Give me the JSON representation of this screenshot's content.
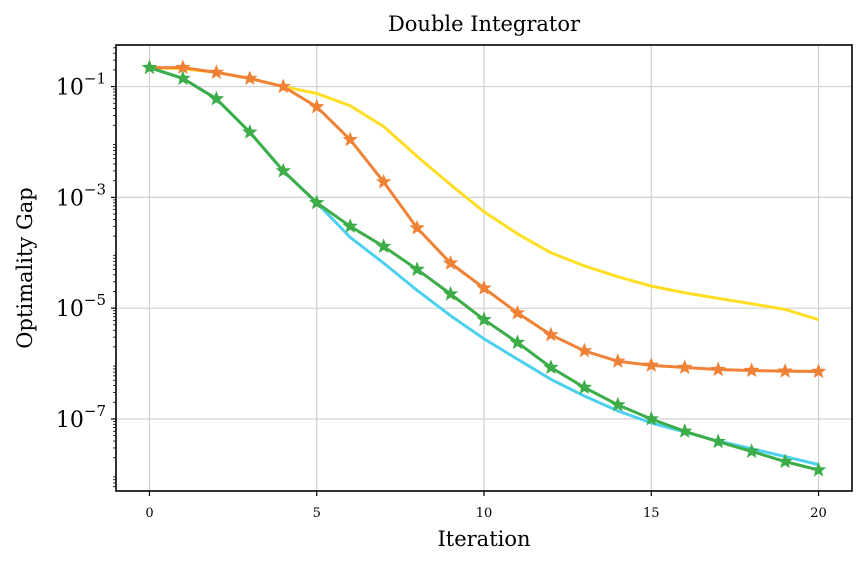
{
  "chart_data": {
    "type": "line",
    "title": "Double Integrator",
    "xlabel": "Iteration",
    "ylabel": "Optimality Gap",
    "xlim": [
      -1,
      21
    ],
    "ylim_log10": [
      -8.3,
      -0.25
    ],
    "yscale": "log",
    "grid": true,
    "x_ticks": [
      0,
      5,
      10,
      15,
      20
    ],
    "y_ticks": [
      {
        "base": "10",
        "exponent": "−1",
        "value_log10": -1
      },
      {
        "base": "10",
        "exponent": "−3",
        "value_log10": -3
      },
      {
        "base": "10",
        "exponent": "−5",
        "value_log10": -5
      },
      {
        "base": "10",
        "exponent": "−7",
        "value_log10": -7
      }
    ],
    "x": [
      0,
      1,
      2,
      3,
      4,
      5,
      6,
      7,
      8,
      9,
      10,
      11,
      12,
      13,
      14,
      15,
      16,
      17,
      18,
      19,
      20
    ],
    "series": [
      {
        "color": "#ffdd22",
        "marker": "none",
        "values": [
          0.22,
          0.21,
          0.18,
          0.14,
          0.1,
          0.075,
          0.045,
          0.019,
          0.0055,
          0.0017,
          0.00055,
          0.00022,
          0.0001,
          5.8e-05,
          3.7e-05,
          2.5e-05,
          1.9e-05,
          1.5e-05,
          1.2e-05,
          9.5e-06,
          6.2e-06
        ]
      },
      {
        "color": "#ef8236",
        "marker": "star",
        "values": [
          0.22,
          0.22,
          0.18,
          0.14,
          0.1,
          0.043,
          0.011,
          0.0019,
          0.00028,
          6.5e-05,
          2.3e-05,
          8.2e-06,
          3.3e-06,
          1.7e-06,
          1.1e-06,
          9.3e-07,
          8.5e-07,
          7.8e-07,
          7.5e-07,
          7.3e-07,
          7.2e-07
        ]
      },
      {
        "color": "#4dd0ee",
        "marker": "none",
        "values": [
          0.22,
          0.14,
          0.06,
          0.015,
          0.003,
          0.0008,
          0.00019,
          6.5e-05,
          2.1e-05,
          7.3e-06,
          2.8e-06,
          1.2e-06,
          5.2e-07,
          2.6e-07,
          1.4e-07,
          8.5e-08,
          5.8e-08,
          4e-08,
          2.9e-08,
          2.1e-08,
          1.5e-08
        ]
      },
      {
        "color": "#3cad49",
        "marker": "star",
        "values": [
          0.22,
          0.14,
          0.06,
          0.015,
          0.003,
          0.0008,
          0.0003,
          0.00013,
          5e-05,
          1.8e-05,
          6.2e-06,
          2.4e-06,
          8.5e-07,
          3.7e-07,
          1.8e-07,
          1e-07,
          6e-08,
          3.9e-08,
          2.6e-08,
          1.7e-08,
          1.2e-08
        ]
      }
    ]
  }
}
